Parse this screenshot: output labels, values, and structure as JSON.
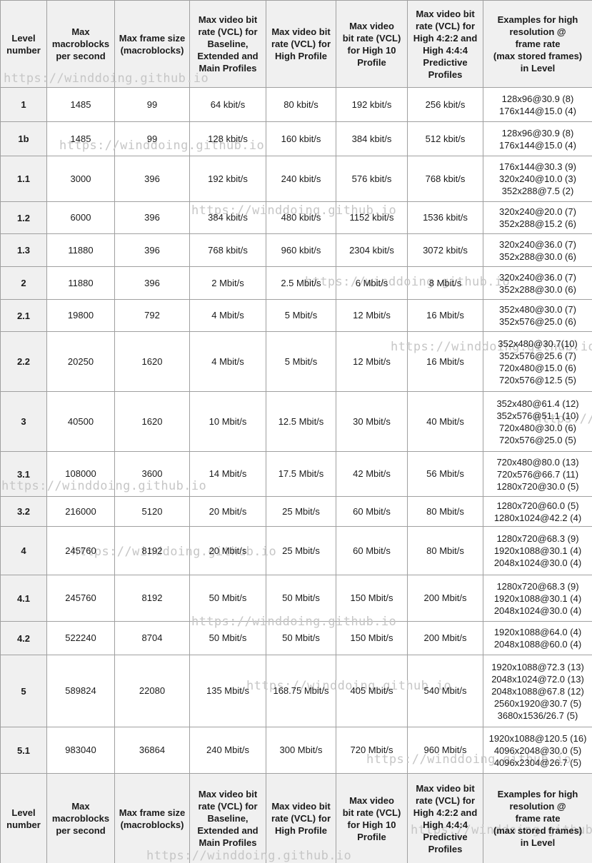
{
  "watermark": {
    "text": "https://winddoing.github.io",
    "color": "#c6c6c6"
  },
  "table": {
    "headers": [
      "Level\nnumber",
      "Max\nmacroblocks\nper second",
      "Max frame size\n(macroblocks)",
      "Max video bit\nrate (VCL) for\nBaseline,\nExtended and\nMain Profiles",
      "Max video bit\nrate (VCL) for\nHigh Profile",
      "Max video\nbit rate (VCL)\nfor High 10\nProfile",
      "Max video bit\nrate (VCL) for\nHigh 4:2:2 and\nHigh 4:4:4\nPredictive\nProfiles",
      "Examples for high\nresolution @\nframe rate\n(max stored frames)\nin Level"
    ],
    "rows": [
      {
        "level": "1",
        "values": [
          "1485",
          "99",
          "64 kbit/s",
          "80 kbit/s",
          "192 kbit/s",
          "256 kbit/s"
        ],
        "examples": [
          "128x96@30.9 (8)",
          "176x144@15.0 (4)"
        ]
      },
      {
        "level": "1b",
        "values": [
          "1485",
          "99",
          "128 kbit/s",
          "160 kbit/s",
          "384 kbit/s",
          "512 kbit/s"
        ],
        "examples": [
          "128x96@30.9 (8)",
          "176x144@15.0 (4)"
        ]
      },
      {
        "level": "1.1",
        "values": [
          "3000",
          "396",
          "192 kbit/s",
          "240 kbit/s",
          "576 kbit/s",
          "768 kbit/s"
        ],
        "examples": [
          "176x144@30.3 (9)",
          "320x240@10.0 (3)",
          "352x288@7.5 (2)"
        ]
      },
      {
        "level": "1.2",
        "values": [
          "6000",
          "396",
          "384 kbit/s",
          "480 kbit/s",
          "1152 kbit/s",
          "1536 kbit/s"
        ],
        "examples": [
          "320x240@20.0 (7)",
          "352x288@15.2 (6)"
        ]
      },
      {
        "level": "1.3",
        "values": [
          "11880",
          "396",
          "768 kbit/s",
          "960 kbit/s",
          "2304 kbit/s",
          "3072 kbit/s"
        ],
        "examples": [
          "320x240@36.0 (7)",
          "352x288@30.0 (6)"
        ]
      },
      {
        "level": "2",
        "values": [
          "11880",
          "396",
          "2 Mbit/s",
          "2.5 Mbit/s",
          "6 Mbit/s",
          "8 Mbit/s"
        ],
        "examples": [
          "320x240@36.0 (7)",
          "352x288@30.0 (6)"
        ]
      },
      {
        "level": "2.1",
        "values": [
          "19800",
          "792",
          "4 Mbit/s",
          "5 Mbit/s",
          "12 Mbit/s",
          "16 Mbit/s"
        ],
        "examples": [
          "352x480@30.0 (7)",
          "352x576@25.0 (6)"
        ]
      },
      {
        "level": "2.2",
        "values": [
          "20250",
          "1620",
          "4 Mbit/s",
          "5 Mbit/s",
          "12 Mbit/s",
          "16 Mbit/s"
        ],
        "examples": [
          "352x480@30.7(10)",
          "352x576@25.6 (7)",
          "720x480@15.0 (6)",
          "720x576@12.5 (5)"
        ]
      },
      {
        "level": "3",
        "values": [
          "40500",
          "1620",
          "10 Mbit/s",
          "12.5 Mbit/s",
          "30 Mbit/s",
          "40 Mbit/s"
        ],
        "examples": [
          "352x480@61.4 (12)",
          "352x576@51.1 (10)",
          "720x480@30.0 (6)",
          "720x576@25.0 (5)"
        ]
      },
      {
        "level": "3.1",
        "values": [
          "108000",
          "3600",
          "14 Mbit/s",
          "17.5 Mbit/s",
          "42 Mbit/s",
          "56 Mbit/s"
        ],
        "examples": [
          "720x480@80.0 (13)",
          "720x576@66.7 (11)",
          "1280x720@30.0 (5)"
        ]
      },
      {
        "level": "3.2",
        "values": [
          "216000",
          "5120",
          "20 Mbit/s",
          "25 Mbit/s",
          "60 Mbit/s",
          "80 Mbit/s"
        ],
        "examples": [
          "1280x720@60.0 (5)",
          "1280x1024@42.2 (4)"
        ]
      },
      {
        "level": "4",
        "values": [
          "245760",
          "8192",
          "20 Mbit/s",
          "25 Mbit/s",
          "60 Mbit/s",
          "80 Mbit/s"
        ],
        "examples": [
          "1280x720@68.3 (9)",
          "1920x1088@30.1 (4)",
          "2048x1024@30.0 (4)"
        ]
      },
      {
        "level": "4.1",
        "values": [
          "245760",
          "8192",
          "50 Mbit/s",
          "50 Mbit/s",
          "150 Mbit/s",
          "200 Mbit/s"
        ],
        "examples": [
          "1280x720@68.3 (9)",
          "1920x1088@30.1 (4)",
          "2048x1024@30.0 (4)"
        ]
      },
      {
        "level": "4.2",
        "values": [
          "522240",
          "8704",
          "50 Mbit/s",
          "50 Mbit/s",
          "150 Mbit/s",
          "200 Mbit/s"
        ],
        "examples": [
          "1920x1088@64.0 (4)",
          "2048x1088@60.0 (4)"
        ]
      },
      {
        "level": "5",
        "values": [
          "589824",
          "22080",
          "135 Mbit/s",
          "168.75 Mbit/s",
          "405 Mbit/s",
          "540 Mbit/s"
        ],
        "examples": [
          "1920x1088@72.3 (13)",
          "2048x1024@72.0 (13)",
          "2048x1088@67.8 (12)",
          "2560x1920@30.7 (5)",
          "3680x1536/26.7 (5)"
        ]
      },
      {
        "level": "5.1",
        "values": [
          "983040",
          "36864",
          "240 Mbit/s",
          "300 Mbit/s",
          "720 Mbit/s",
          "960 Mbit/s"
        ],
        "examples": [
          "1920x1088@120.5 (16)",
          "4096x2048@30.0 (5)",
          "4096x2304@26.7 (5)"
        ]
      }
    ]
  }
}
